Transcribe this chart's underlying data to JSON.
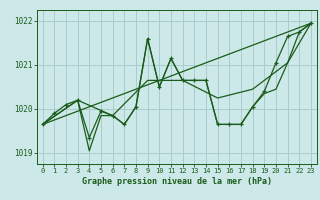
{
  "background_color": "#cde8e8",
  "grid_color": "#aacccc",
  "line_color": "#1a5c1a",
  "xlabel": "Graphe pression niveau de la mer (hPa)",
  "ylim": [
    1018.75,
    1022.25
  ],
  "xlim": [
    -0.5,
    23.5
  ],
  "yticks": [
    1019,
    1020,
    1021,
    1022
  ],
  "xticks": [
    0,
    1,
    2,
    3,
    4,
    5,
    6,
    7,
    8,
    9,
    10,
    11,
    12,
    13,
    14,
    15,
    16,
    17,
    18,
    19,
    20,
    21,
    22,
    23
  ],
  "series1_x": [
    0,
    1,
    2,
    3,
    4,
    5,
    6,
    7,
    8,
    9,
    10,
    11,
    12,
    13,
    14,
    15,
    16,
    17,
    18,
    19,
    20,
    21,
    22,
    23
  ],
  "series1_y": [
    1019.65,
    1019.9,
    1020.1,
    1020.2,
    1019.35,
    1019.95,
    1019.85,
    1019.65,
    1020.05,
    1021.6,
    1020.5,
    1021.15,
    1020.65,
    1020.65,
    1020.65,
    1019.65,
    1019.65,
    1019.65,
    1020.05,
    1020.4,
    1021.05,
    1021.65,
    1021.75,
    1021.95
  ],
  "series2_x": [
    0,
    3,
    4,
    5,
    6,
    7,
    8,
    9,
    10,
    11,
    12,
    13,
    14,
    15,
    16,
    17,
    18,
    19,
    20,
    21,
    22,
    23
  ],
  "series2_y": [
    1019.65,
    1020.2,
    1019.05,
    1019.85,
    1019.85,
    1019.65,
    1020.05,
    1021.6,
    1020.5,
    1021.15,
    1020.65,
    1020.65,
    1020.65,
    1019.65,
    1019.65,
    1019.65,
    1020.05,
    1020.35,
    1020.45,
    1021.05,
    1021.75,
    1021.95
  ],
  "series3_x": [
    0,
    3,
    6,
    9,
    12,
    15,
    18,
    21,
    23
  ],
  "series3_y": [
    1019.65,
    1020.2,
    1019.85,
    1020.65,
    1020.65,
    1020.25,
    1020.45,
    1021.05,
    1021.95
  ],
  "series4_x": [
    0,
    23
  ],
  "series4_y": [
    1019.65,
    1021.95
  ]
}
